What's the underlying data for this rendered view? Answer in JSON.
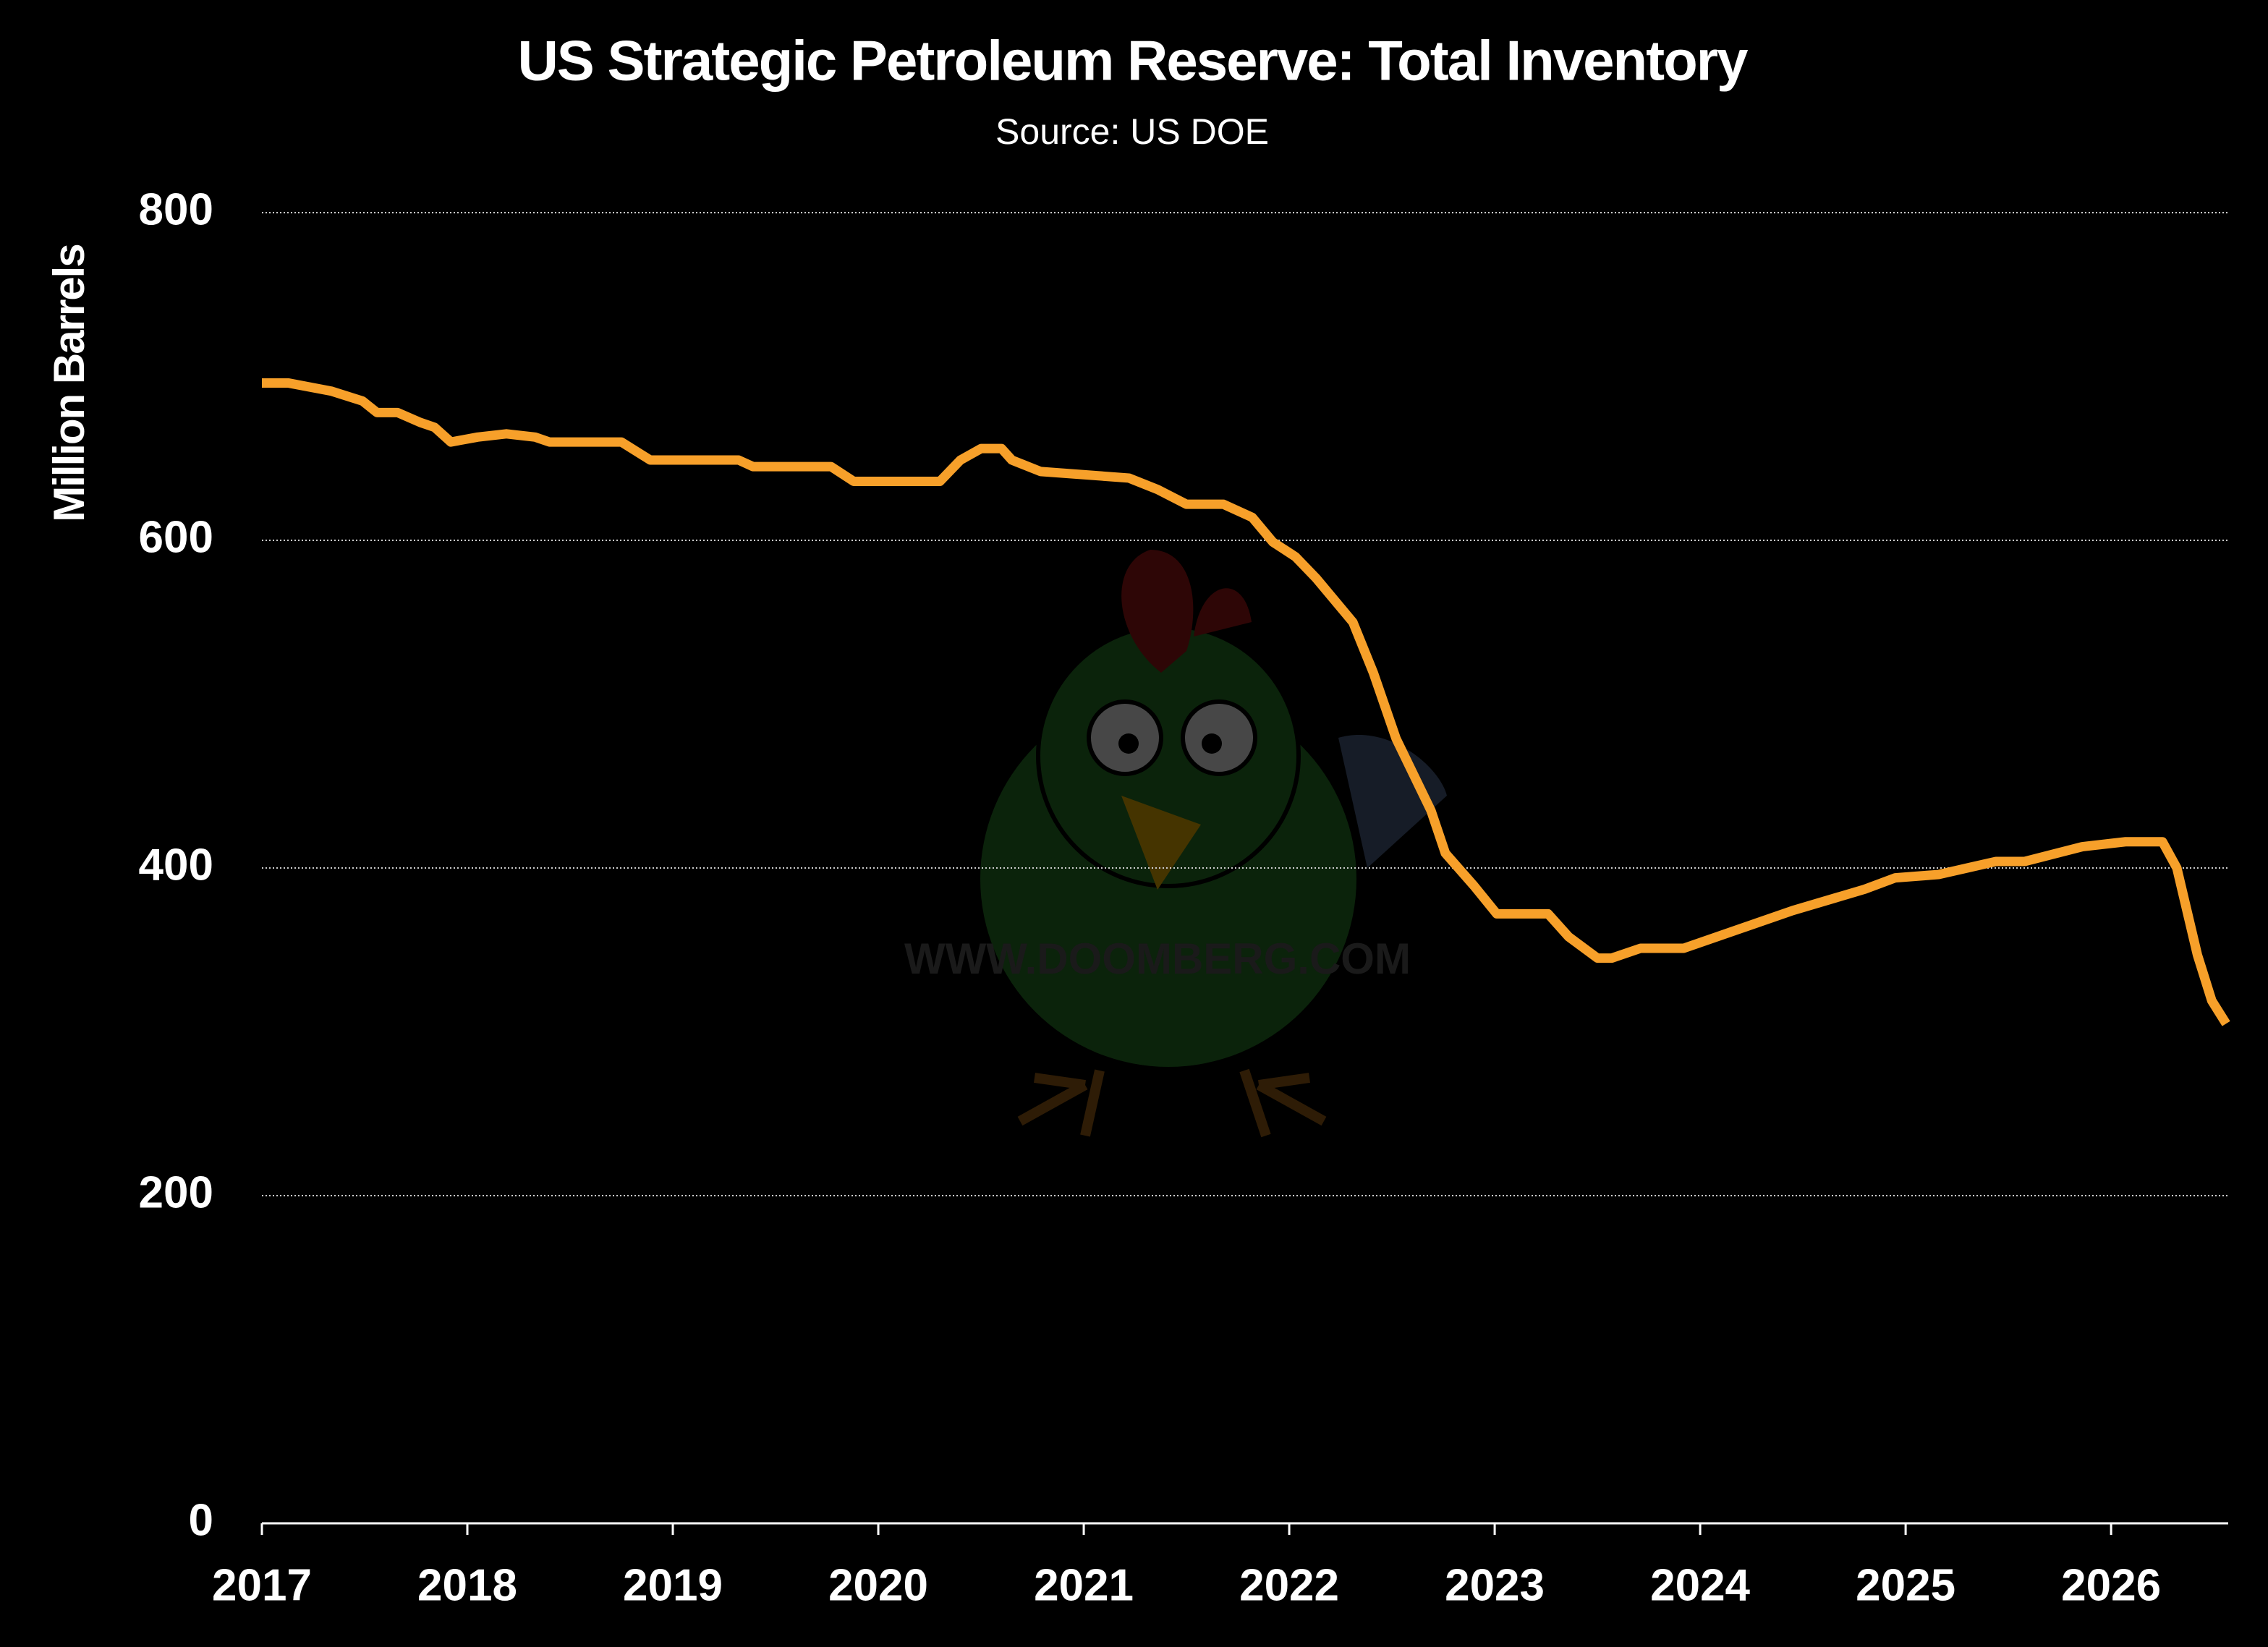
{
  "chart_data": {
    "type": "line",
    "title": "US Strategic Petroleum Reserve: Total Inventory",
    "subtitle": "Source: US DOE",
    "y_label": "Million Barrels",
    "watermark": "WWW.DOOMBERG.COM",
    "x": [
      2017.0,
      2017.13,
      2017.34,
      2017.49,
      2017.56,
      2017.66,
      2017.77,
      2017.84,
      2017.92,
      2018.05,
      2018.19,
      2018.33,
      2018.4,
      2018.75,
      2018.89,
      2019.32,
      2019.39,
      2019.77,
      2019.88,
      2020.3,
      2020.4,
      2020.5,
      2020.6,
      2020.65,
      2020.79,
      2021.22,
      2021.36,
      2021.5,
      2021.68,
      2021.82,
      2021.92,
      2022.03,
      2022.13,
      2022.31,
      2022.41,
      2022.52,
      2022.69,
      2022.76,
      2022.9,
      2023.01,
      2023.26,
      2023.36,
      2023.5,
      2023.57,
      2023.71,
      2023.92,
      2024.45,
      2024.8,
      2024.95,
      2025.16,
      2025.3,
      2025.44,
      2025.58,
      2025.86,
      2026.07,
      2026.25,
      2026.32,
      2026.42,
      2026.49,
      2026.56
    ],
    "series": [
      {
        "name": "Total Inventory",
        "color": "#f7a02a",
        "values": [
          696,
          696,
          691,
          685,
          678,
          678,
          672,
          669,
          660,
          663,
          665,
          663,
          660,
          660,
          649,
          649,
          645,
          645,
          636,
          636,
          649,
          656,
          656,
          649,
          642,
          638,
          631,
          622,
          622,
          614,
          599,
          590,
          577,
          550,
          519,
          479,
          435,
          409,
          389,
          372,
          372,
          358,
          345,
          345,
          351,
          351,
          374,
          387,
          394,
          396,
          400,
          404,
          404,
          413,
          416,
          416,
          400,
          347,
          319,
          305
        ]
      }
    ],
    "xlim": [
      2017,
      2026.57
    ],
    "xticks": [
      2017,
      2018,
      2019,
      2020,
      2021,
      2022,
      2023,
      2024,
      2025,
      2026
    ],
    "ylim": [
      0,
      800
    ],
    "yticks": [
      0,
      200,
      400,
      600,
      800
    ],
    "grid": true
  }
}
